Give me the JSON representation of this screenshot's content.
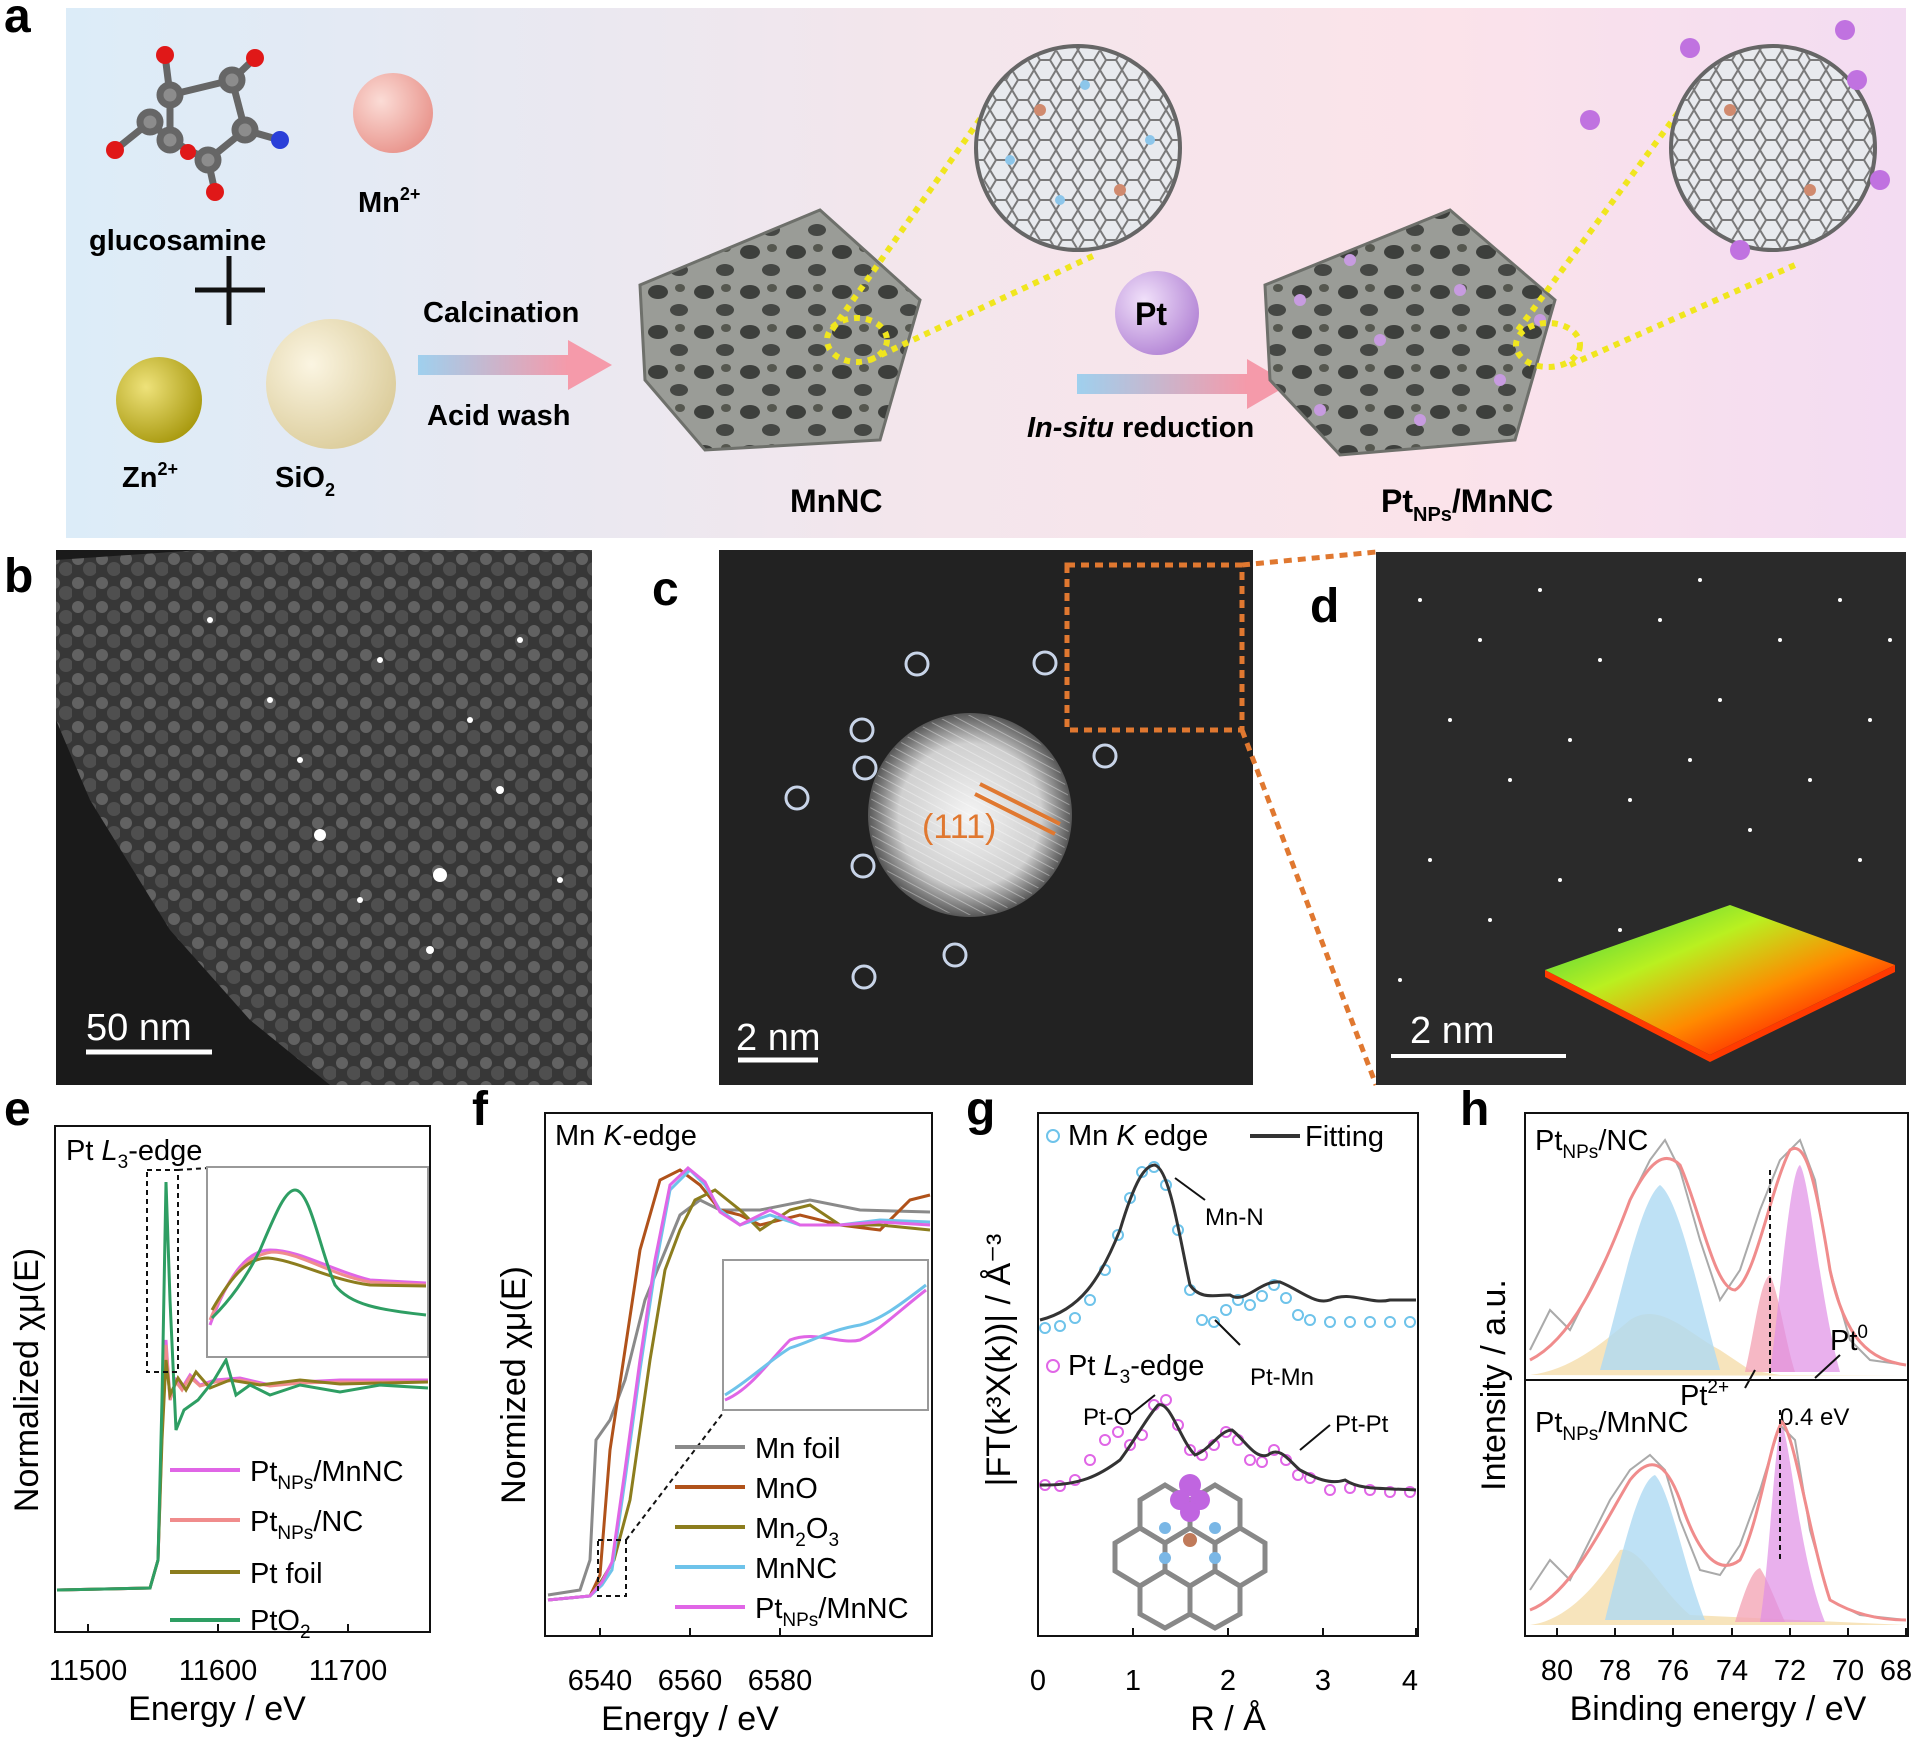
{
  "panel_letters": {
    "a": "a",
    "b": "b",
    "c": "c",
    "d": "d",
    "e": "e",
    "f": "f",
    "g": "g",
    "h": "h"
  },
  "panel_a": {
    "glucosamine": "glucosamine",
    "mn_label": "Mn",
    "mn_sup": "2+",
    "zn_label": "Zn",
    "zn_sup": "2+",
    "sio2_label": "SiO",
    "sio2_sub": "2",
    "arrow1_top": "Calcination",
    "arrow1_bottom": "Acid wash",
    "mnnc": "MnNC",
    "pt_ball": "Pt",
    "arrow2_italic": "In-situ",
    "arrow2_rest": " reduction",
    "product_main": "Pt",
    "product_sub": "NPs",
    "product_rest": "/MnNC",
    "colors": {
      "mn": "#f0a8a0",
      "zn": "#c8b820",
      "sio2": "#eee2bd",
      "pt": "#c79be0",
      "framework": "#8b8d88"
    }
  },
  "panel_b": {
    "scale": "50 nm"
  },
  "panel_c": {
    "scale": "2 nm",
    "plane": "(111)"
  },
  "panel_d": {
    "scale": "2 nm"
  },
  "panel_e": {
    "title": "Pt L3-edge",
    "title_pre": "Pt ",
    "title_it": "L",
    "title_sub": "3",
    "title_post": "-edge",
    "ylabel": "Normalized χμ(E)",
    "xlabel": "Energy / eV",
    "xticks": [
      "11500",
      "11600",
      "11700"
    ],
    "legend": [
      {
        "pre": "Pt",
        "sub": "NPs",
        "post": "/MnNC",
        "color": "#e066e6"
      },
      {
        "pre": "Pt",
        "sub": "NPs",
        "post": "/NC",
        "color": "#f08c8c"
      },
      {
        "pre": "Pt foil",
        "sub": "",
        "post": "",
        "color": "#8c7d1e"
      },
      {
        "pre": "PtO",
        "sub": "2",
        "post": "",
        "color": "#2e9e63"
      }
    ]
  },
  "panel_f": {
    "title_pre": "Mn ",
    "title_it": "K",
    "title_post": "-edge",
    "ylabel": "Normized χμ(E)",
    "xlabel": "Energy / eV",
    "xticks": [
      "6540",
      "6560",
      "6580"
    ],
    "legend": [
      {
        "pre": "Mn foil",
        "sub": "",
        "post": "",
        "color": "#8a8a8a"
      },
      {
        "pre": "MnO",
        "sub": "",
        "post": "",
        "color": "#b0521a"
      },
      {
        "pre": "Mn",
        "sub": "2",
        "post": "O3",
        "color": "#8c7d1e"
      },
      {
        "pre": "MnNC",
        "sub": "",
        "post": "",
        "color": "#6ec3ea"
      },
      {
        "pre": "Pt",
        "sub": "NPs",
        "post": "/MnNC",
        "color": "#e066e6"
      }
    ]
  },
  "panel_g": {
    "legend1_pre": "Mn ",
    "legend1_it": "K",
    "legend1_post": " edge",
    "legend_fit": "Fitting",
    "legend2_pre": "Pt ",
    "legend2_it": "L",
    "legend2_sub": "3",
    "legend2_post": "-edge",
    "ylabel": "|FT(k³X(k))| / Å⁻³",
    "xlabel": "R / Å",
    "xticks": [
      "0",
      "1",
      "2",
      "3",
      "4"
    ],
    "ann_mnn": "Mn-N",
    "ann_ptmn": "Pt-Mn",
    "ann_pto": "Pt-O",
    "ann_ptpt": "Pt-Pt"
  },
  "panel_h": {
    "label_top_main": "Pt",
    "label_top_sub": "NPs",
    "label_top_rest": "/NC",
    "label_bot_main": "Pt",
    "label_bot_sub": "NPs",
    "label_bot_rest": "/MnNC",
    "pt0": "Pt",
    "pt0_sup": "0",
    "pt2": "Pt",
    "pt2_sup": "2+",
    "shift": "0.4 eV",
    "ylabel": "Intensity / a.u.",
    "xlabel": "Binding energy / eV",
    "xticks": [
      "80",
      "78",
      "76",
      "74",
      "72",
      "70",
      "68"
    ]
  }
}
